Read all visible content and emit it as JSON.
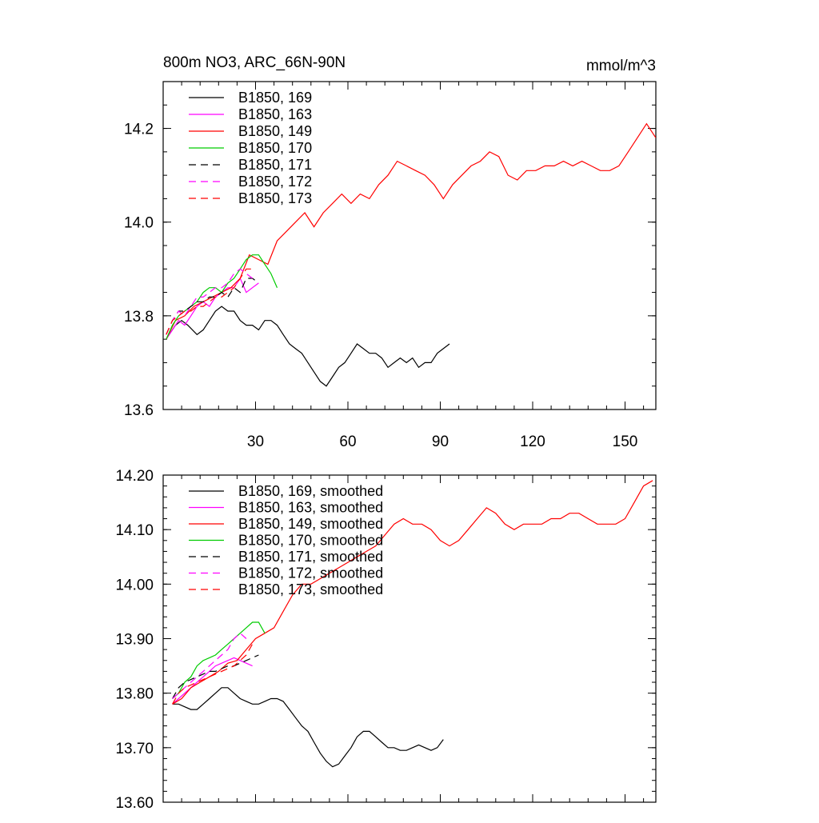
{
  "chart_data": [
    {
      "type": "line",
      "title_left": "800m NO3, ARC_66N-90N",
      "title_right": "mmol/m^3",
      "xlim": [
        0,
        160
      ],
      "ylim": [
        13.6,
        14.3
      ],
      "x_ticks": [
        30,
        60,
        90,
        120,
        150
      ],
      "x_tick_labels": [
        "30",
        "60",
        "90",
        "120",
        "150"
      ],
      "y_ticks": [
        13.6,
        13.8,
        14.0,
        14.2
      ],
      "y_tick_labels": [
        "13.6",
        "13.8",
        "14.0",
        "14.2"
      ],
      "legend_position": "top-left",
      "series": [
        {
          "name": "B1850, 169",
          "color": "#000000",
          "dash": "solid",
          "x": [
            1,
            4,
            6,
            8,
            11,
            13,
            15,
            17,
            19,
            21,
            23,
            25,
            27,
            29,
            31,
            33,
            35,
            37,
            39,
            41,
            43,
            45,
            47,
            49,
            51,
            53,
            55,
            57,
            59,
            61,
            63,
            65,
            67,
            69,
            71,
            73,
            75,
            77,
            79,
            81,
            83,
            85,
            87,
            89,
            91,
            93
          ],
          "y": [
            13.75,
            13.78,
            13.79,
            13.78,
            13.76,
            13.77,
            13.79,
            13.81,
            13.82,
            13.81,
            13.81,
            13.79,
            13.78,
            13.78,
            13.77,
            13.79,
            13.79,
            13.78,
            13.76,
            13.74,
            13.73,
            13.72,
            13.7,
            13.68,
            13.66,
            13.65,
            13.67,
            13.69,
            13.7,
            13.72,
            13.74,
            13.73,
            13.72,
            13.72,
            13.71,
            13.69,
            13.7,
            13.71,
            13.7,
            13.71,
            13.69,
            13.7,
            13.7,
            13.72,
            13.73,
            13.74
          ]
        },
        {
          "name": "B1850, 163",
          "color": "#ff00ff",
          "dash": "solid",
          "x": [
            1,
            3,
            5,
            7,
            9,
            11,
            13,
            15,
            17,
            19,
            21,
            23,
            25,
            27,
            29,
            31
          ],
          "y": [
            13.75,
            13.77,
            13.79,
            13.78,
            13.8,
            13.82,
            13.83,
            13.82,
            13.84,
            13.85,
            13.86,
            13.86,
            13.88,
            13.85,
            13.86,
            13.87
          ]
        },
        {
          "name": "B1850, 149",
          "color": "#ff0000",
          "dash": "solid",
          "x": [
            1,
            4,
            7,
            10,
            13,
            16,
            19,
            22,
            25,
            28,
            31,
            34,
            37,
            40,
            43,
            46,
            49,
            52,
            55,
            58,
            61,
            64,
            67,
            70,
            73,
            76,
            79,
            82,
            85,
            88,
            91,
            94,
            97,
            100,
            103,
            106,
            109,
            112,
            115,
            118,
            121,
            124,
            127,
            130,
            133,
            136,
            139,
            142,
            145,
            148,
            151,
            154,
            157,
            160
          ],
          "y": [
            13.75,
            13.79,
            13.8,
            13.82,
            13.83,
            13.84,
            13.85,
            13.86,
            13.88,
            13.93,
            13.92,
            13.91,
            13.96,
            13.98,
            14.0,
            14.02,
            13.99,
            14.02,
            14.04,
            14.06,
            14.04,
            14.06,
            14.05,
            14.08,
            14.1,
            14.13,
            14.12,
            14.11,
            14.1,
            14.08,
            14.05,
            14.08,
            14.1,
            14.12,
            14.13,
            14.15,
            14.14,
            14.1,
            14.09,
            14.11,
            14.11,
            14.12,
            14.12,
            14.13,
            14.12,
            14.13,
            14.12,
            14.11,
            14.11,
            14.12,
            14.15,
            14.18,
            14.21,
            14.18
          ]
        },
        {
          "name": "B1850, 170",
          "color": "#00cc00",
          "dash": "solid",
          "x": [
            1,
            3,
            5,
            7,
            9,
            11,
            13,
            15,
            17,
            19,
            21,
            23,
            25,
            27,
            29,
            31,
            33,
            35,
            37
          ],
          "y": [
            13.75,
            13.78,
            13.8,
            13.81,
            13.82,
            13.83,
            13.85,
            13.86,
            13.86,
            13.85,
            13.87,
            13.88,
            13.9,
            13.92,
            13.93,
            13.93,
            13.91,
            13.89,
            13.86
          ]
        },
        {
          "name": "B1850, 171",
          "color": "#000000",
          "dash": "dashed",
          "x": [
            1,
            3,
            5,
            7,
            9,
            11,
            13,
            15,
            17,
            19,
            21,
            23,
            25,
            27,
            29,
            31
          ],
          "y": [
            13.76,
            13.79,
            13.81,
            13.81,
            13.82,
            13.83,
            13.83,
            13.84,
            13.84,
            13.85,
            13.84,
            13.86,
            13.85,
            13.88,
            13.88,
            13.87
          ]
        },
        {
          "name": "B1850, 172",
          "color": "#ff00ff",
          "dash": "dashed",
          "x": [
            1,
            3,
            5,
            7,
            9,
            11,
            13,
            15,
            17,
            19,
            21,
            23,
            25,
            27,
            29
          ],
          "y": [
            13.76,
            13.79,
            13.81,
            13.8,
            13.82,
            13.84,
            13.84,
            13.85,
            13.86,
            13.86,
            13.87,
            13.89,
            13.9,
            13.89,
            13.88
          ]
        },
        {
          "name": "B1850, 173",
          "color": "#ff0000",
          "dash": "dashed",
          "x": [
            1,
            3,
            5,
            7,
            9,
            11,
            13,
            15,
            17,
            19,
            21,
            23,
            25,
            27,
            29
          ],
          "y": [
            13.76,
            13.79,
            13.8,
            13.81,
            13.81,
            13.82,
            13.82,
            13.83,
            13.84,
            13.84,
            13.85,
            13.86,
            13.88,
            13.9,
            13.9
          ]
        }
      ]
    },
    {
      "type": "line",
      "xlim": [
        0,
        160
      ],
      "ylim": [
        13.6,
        14.2
      ],
      "x_ticks": [
        30,
        60,
        90,
        120,
        150
      ],
      "x_tick_labels": [],
      "y_ticks": [
        13.6,
        13.7,
        13.8,
        13.9,
        14.0,
        14.1,
        14.2
      ],
      "y_tick_labels": [
        "13.60",
        "13.70",
        "13.80",
        "13.90",
        "14.00",
        "14.10",
        "14.20"
      ],
      "legend_position": "top-left",
      "series": [
        {
          "name": "B1850, 169, smoothed",
          "color": "#000000",
          "dash": "solid",
          "x": [
            3,
            5,
            7,
            9,
            11,
            13,
            15,
            17,
            19,
            21,
            23,
            25,
            27,
            29,
            31,
            33,
            35,
            37,
            39,
            41,
            43,
            45,
            47,
            49,
            51,
            53,
            55,
            57,
            59,
            61,
            63,
            65,
            67,
            69,
            71,
            73,
            75,
            77,
            79,
            81,
            83,
            85,
            87,
            89,
            91
          ],
          "y": [
            13.78,
            13.78,
            13.775,
            13.77,
            13.77,
            13.78,
            13.79,
            13.8,
            13.81,
            13.81,
            13.8,
            13.79,
            13.785,
            13.78,
            13.78,
            13.785,
            13.79,
            13.79,
            13.785,
            13.77,
            13.755,
            13.74,
            13.73,
            13.71,
            13.69,
            13.675,
            13.665,
            13.67,
            13.685,
            13.7,
            13.72,
            13.73,
            13.73,
            13.72,
            13.71,
            13.7,
            13.7,
            13.695,
            13.695,
            13.7,
            13.705,
            13.7,
            13.695,
            13.7,
            13.715
          ]
        },
        {
          "name": "B1850, 163, smoothed",
          "color": "#ff00ff",
          "dash": "solid",
          "x": [
            3,
            5,
            7,
            9,
            11,
            13,
            15,
            17,
            19,
            21,
            23,
            25,
            27,
            29
          ],
          "y": [
            13.78,
            13.79,
            13.8,
            13.81,
            13.82,
            13.83,
            13.84,
            13.85,
            13.855,
            13.86,
            13.865,
            13.86,
            13.855,
            13.85
          ]
        },
        {
          "name": "B1850, 149, smoothed",
          "color": "#ff0000",
          "dash": "solid",
          "x": [
            3,
            6,
            9,
            12,
            15,
            18,
            21,
            24,
            27,
            30,
            33,
            36,
            39,
            42,
            45,
            48,
            51,
            54,
            57,
            60,
            63,
            66,
            69,
            72,
            75,
            78,
            81,
            84,
            87,
            90,
            93,
            96,
            99,
            102,
            105,
            108,
            111,
            114,
            117,
            120,
            123,
            126,
            129,
            132,
            135,
            138,
            141,
            144,
            147,
            150,
            153,
            156,
            159
          ],
          "y": [
            13.78,
            13.79,
            13.81,
            13.82,
            13.83,
            13.84,
            13.855,
            13.86,
            13.88,
            13.9,
            13.91,
            13.92,
            13.95,
            13.98,
            14.0,
            14.0,
            14.01,
            14.02,
            14.03,
            14.04,
            14.05,
            14.06,
            14.07,
            14.09,
            14.11,
            14.12,
            14.11,
            14.11,
            14.1,
            14.08,
            14.07,
            14.08,
            14.1,
            14.12,
            14.14,
            14.13,
            14.11,
            14.1,
            14.11,
            14.11,
            14.11,
            14.12,
            14.12,
            14.13,
            14.13,
            14.12,
            14.11,
            14.11,
            14.11,
            14.12,
            14.15,
            14.18,
            14.19
          ]
        },
        {
          "name": "B1850, 170, smoothed",
          "color": "#00cc00",
          "dash": "solid",
          "x": [
            3,
            5,
            7,
            9,
            11,
            13,
            15,
            17,
            19,
            21,
            23,
            25,
            27,
            29,
            31,
            33
          ],
          "y": [
            13.79,
            13.8,
            13.82,
            13.83,
            13.85,
            13.86,
            13.865,
            13.87,
            13.88,
            13.89,
            13.9,
            13.91,
            13.92,
            13.93,
            13.93,
            13.91
          ]
        },
        {
          "name": "B1850, 171, smoothed",
          "color": "#000000",
          "dash": "dashed",
          "x": [
            3,
            5,
            7,
            9,
            11,
            13,
            15,
            17,
            19,
            21,
            23,
            25,
            27,
            29,
            31
          ],
          "y": [
            13.79,
            13.81,
            13.82,
            13.825,
            13.83,
            13.835,
            13.84,
            13.84,
            13.845,
            13.85,
            13.85,
            13.855,
            13.86,
            13.865,
            13.87
          ]
        },
        {
          "name": "B1850, 172, smoothed",
          "color": "#ff00ff",
          "dash": "dashed",
          "x": [
            3,
            5,
            7,
            9,
            11,
            13,
            15,
            17,
            19,
            21,
            23,
            25,
            27
          ],
          "y": [
            13.79,
            13.8,
            13.81,
            13.82,
            13.83,
            13.84,
            13.85,
            13.86,
            13.87,
            13.88,
            13.9,
            13.91,
            13.9
          ]
        },
        {
          "name": "B1850, 173, smoothed",
          "color": "#ff0000",
          "dash": "dashed",
          "x": [
            3,
            5,
            7,
            9,
            11,
            13,
            15,
            17,
            19,
            21,
            23,
            25,
            27,
            29
          ],
          "y": [
            13.78,
            13.8,
            13.81,
            13.815,
            13.82,
            13.825,
            13.83,
            13.835,
            13.84,
            13.845,
            13.85,
            13.86,
            13.87,
            13.89
          ]
        }
      ]
    }
  ]
}
